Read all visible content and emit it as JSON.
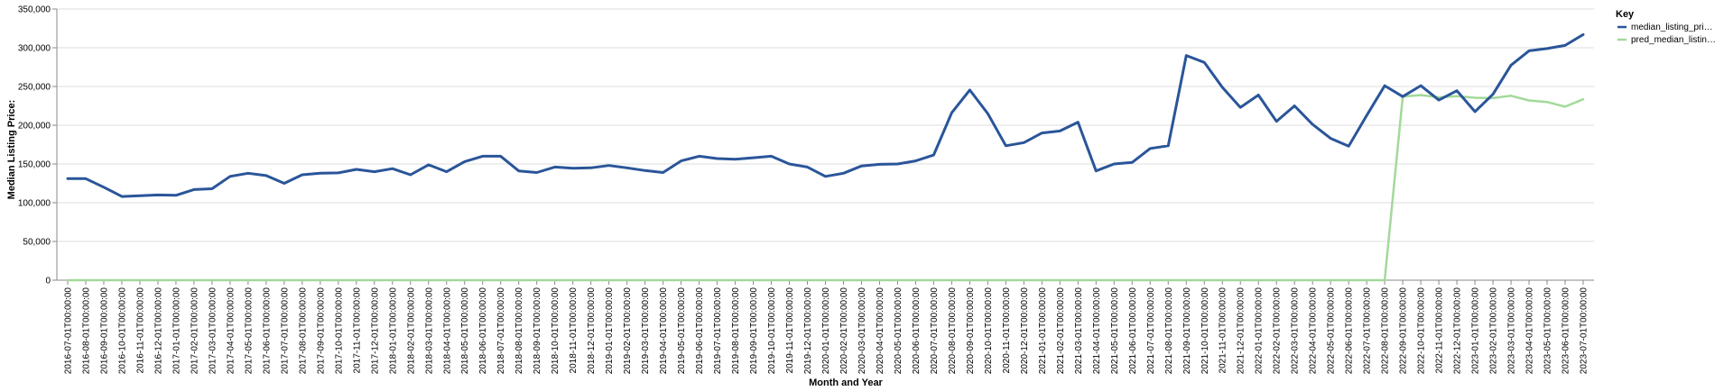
{
  "chart_data": {
    "type": "line",
    "xlabel": "Month and Year",
    "ylabel": "Median Listing Price:",
    "ylim": [
      0,
      350000
    ],
    "yticks": [
      0,
      50000,
      100000,
      150000,
      200000,
      250000,
      300000,
      350000
    ],
    "ytick_labels": [
      "0",
      "50,000",
      "100,000",
      "150,000",
      "200,000",
      "250,000",
      "300,000",
      "350,000"
    ],
    "grid": true,
    "legend": {
      "title": "Key",
      "placement": "right"
    },
    "x": [
      "2016-07-01T00:00:00",
      "2016-08-01T00:00:00",
      "2016-09-01T00:00:00",
      "2016-10-01T00:00:00",
      "2016-11-01T00:00:00",
      "2016-12-01T00:00:00",
      "2017-01-01T00:00:00",
      "2017-02-01T00:00:00",
      "2017-03-01T00:00:00",
      "2017-04-01T00:00:00",
      "2017-05-01T00:00:00",
      "2017-06-01T00:00:00",
      "2017-07-01T00:00:00",
      "2017-08-01T00:00:00",
      "2017-09-01T00:00:00",
      "2017-10-01T00:00:00",
      "2017-11-01T00:00:00",
      "2017-12-01T00:00:00",
      "2018-01-01T00:00:00",
      "2018-02-01T00:00:00",
      "2018-03-01T00:00:00",
      "2018-04-01T00:00:00",
      "2018-05-01T00:00:00",
      "2018-06-01T00:00:00",
      "2018-07-01T00:00:00",
      "2018-08-01T00:00:00",
      "2018-09-01T00:00:00",
      "2018-10-01T00:00:00",
      "2018-11-01T00:00:00",
      "2018-12-01T00:00:00",
      "2019-01-01T00:00:00",
      "2019-02-01T00:00:00",
      "2019-03-01T00:00:00",
      "2019-04-01T00:00:00",
      "2019-05-01T00:00:00",
      "2019-06-01T00:00:00",
      "2019-07-01T00:00:00",
      "2019-08-01T00:00:00",
      "2019-09-01T00:00:00",
      "2019-10-01T00:00:00",
      "2019-11-01T00:00:00",
      "2019-12-01T00:00:00",
      "2020-01-01T00:00:00",
      "2020-02-01T00:00:00",
      "2020-03-01T00:00:00",
      "2020-04-01T00:00:00",
      "2020-05-01T00:00:00",
      "2020-06-01T00:00:00",
      "2020-07-01T00:00:00",
      "2020-08-01T00:00:00",
      "2020-09-01T00:00:00",
      "2020-10-01T00:00:00",
      "2020-11-01T00:00:00",
      "2020-12-01T00:00:00",
      "2021-01-01T00:00:00",
      "2021-02-01T00:00:00",
      "2021-03-01T00:00:00",
      "2021-04-01T00:00:00",
      "2021-05-01T00:00:00",
      "2021-06-01T00:00:00",
      "2021-07-01T00:00:00",
      "2021-08-01T00:00:00",
      "2021-09-01T00:00:00",
      "2021-10-01T00:00:00",
      "2021-11-01T00:00:00",
      "2021-12-01T00:00:00",
      "2022-01-01T00:00:00",
      "2022-02-01T00:00:00",
      "2022-03-01T00:00:00",
      "2022-04-01T00:00:00",
      "2022-05-01T00:00:00",
      "2022-06-01T00:00:00",
      "2022-07-01T00:00:00",
      "2022-08-01T00:00:00",
      "2022-09-01T00:00:00",
      "2022-10-01T00:00:00",
      "2022-11-01T00:00:00",
      "2022-12-01T00:00:00",
      "2023-01-01T00:00:00",
      "2023-02-01T00:00:00",
      "2023-03-01T00:00:00",
      "2023-04-01T00:00:00",
      "2023-05-01T00:00:00",
      "2023-06-01T00:00:00",
      "2023-07-01T00:00:00"
    ],
    "series": [
      {
        "name": "median_listing_pri…",
        "color": "#2a5599",
        "values": [
          131000,
          131000,
          120000,
          108000,
          109000,
          110000,
          109500,
          117000,
          118000,
          134000,
          138000,
          135000,
          125000,
          136000,
          138000,
          138500,
          143000,
          140000,
          144000,
          136000,
          149000,
          140000,
          153000,
          160000,
          160000,
          141000,
          139000,
          146000,
          144500,
          145000,
          148000,
          145000,
          141500,
          139000,
          154000,
          160000,
          157000,
          156000,
          158000,
          160000,
          150000,
          146000,
          134000,
          138000,
          147500,
          149500,
          150000,
          154000,
          161500,
          216000,
          245500,
          215000,
          173500,
          177500,
          190000,
          192500,
          204000,
          141000,
          150000,
          152000,
          170000,
          173500,
          290000,
          281000,
          249000,
          223000,
          239000,
          205000,
          225000,
          201000,
          183000,
          173000,
          212500,
          251000,
          237000,
          251000,
          232500,
          244500,
          217500,
          240000,
          277500,
          296000,
          299000,
          303000,
          317000
        ]
      },
      {
        "name": "pred_median_listin…",
        "color": "#a3d99a",
        "values": [
          0,
          0,
          0,
          0,
          0,
          0,
          0,
          0,
          0,
          0,
          0,
          0,
          0,
          0,
          0,
          0,
          0,
          0,
          0,
          0,
          0,
          0,
          0,
          0,
          0,
          0,
          0,
          0,
          0,
          0,
          0,
          0,
          0,
          0,
          0,
          0,
          0,
          0,
          0,
          0,
          0,
          0,
          0,
          0,
          0,
          0,
          0,
          0,
          0,
          0,
          0,
          0,
          0,
          0,
          0,
          0,
          0,
          0,
          0,
          0,
          0,
          0,
          0,
          0,
          0,
          0,
          0,
          0,
          0,
          0,
          0,
          0,
          0,
          0,
          237000,
          239000,
          236000,
          237500,
          235500,
          235000,
          238000,
          232000,
          230000,
          224000,
          233500
        ]
      }
    ]
  }
}
